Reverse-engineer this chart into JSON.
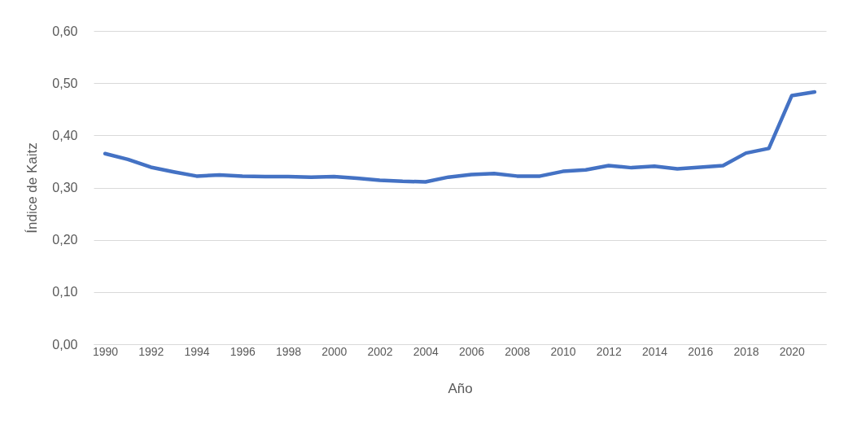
{
  "chart_data": {
    "type": "line",
    "xlabel": "Año",
    "ylabel": "Índice de Kaitz",
    "categories": [
      "1990",
      null,
      "1992",
      null,
      "1994",
      null,
      "1996",
      null,
      "1998",
      null,
      "2000",
      null,
      "2002",
      null,
      "2004",
      null,
      "2006",
      null,
      "2008",
      null,
      "2010",
      null,
      "2012",
      null,
      "2014",
      null,
      "2016",
      null,
      "2018",
      null,
      "2020",
      null
    ],
    "series": [
      {
        "color": "#4472c4",
        "values": [
          0.365,
          0.354,
          0.339,
          0.33,
          0.322,
          0.324,
          0.322,
          0.321,
          0.321,
          0.32,
          0.321,
          0.318,
          0.314,
          0.312,
          0.311,
          0.32,
          0.325,
          0.327,
          0.322,
          0.322,
          0.331,
          0.334,
          0.342,
          0.338,
          0.341,
          0.336,
          0.339,
          0.342,
          0.366,
          0.375,
          0.476,
          0.483
        ]
      }
    ],
    "ylim": [
      0,
      0.6
    ],
    "yticks": [
      {
        "value": 0,
        "label": "0,00"
      },
      {
        "value": 0.1,
        "label": "0,10"
      },
      {
        "value": 0.2,
        "label": "0,20"
      },
      {
        "value": 0.3,
        "label": "0,30"
      },
      {
        "value": 0.4,
        "label": "0,40"
      },
      {
        "value": 0.5,
        "label": "0,50"
      },
      {
        "value": 0.6,
        "label": "0,60"
      }
    ],
    "grid": "y",
    "marker": "none",
    "line_style": "solid"
  }
}
